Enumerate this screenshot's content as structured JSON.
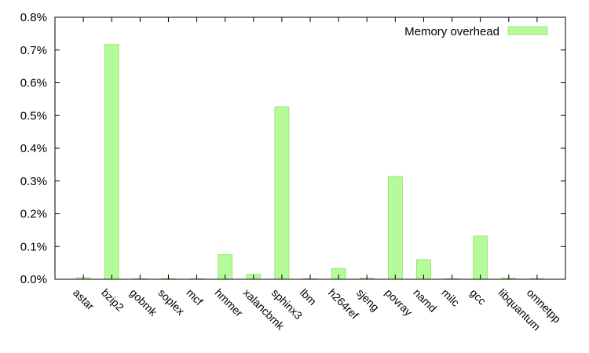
{
  "chart_data": {
    "type": "bar",
    "categories": [
      "astar",
      "bzip2",
      "gobmk",
      "soplex",
      "mcf",
      "hmmer",
      "xalancbmk",
      "sphinx3",
      "lbm",
      "h264ref",
      "sjeng",
      "povray",
      "namd",
      "milc",
      "gcc",
      "libquantum",
      "omnetpp"
    ],
    "series": [
      {
        "name": "Memory overhead",
        "values": [
          0.005,
          0.717,
          0.0,
          0.002,
          0.0,
          0.075,
          0.015,
          0.527,
          0.0,
          0.033,
          0.004,
          0.314,
          0.06,
          0.002,
          0.132,
          0.004,
          0.002
        ],
        "color": "#b5fb99",
        "stroke": "#8fe06e"
      }
    ],
    "ylim": [
      0,
      0.8
    ],
    "yticks": [
      0.0,
      0.1,
      0.2,
      0.3,
      0.4,
      0.5,
      0.6,
      0.7,
      0.8
    ],
    "ytick_labels": [
      "0.0%",
      "0.1%",
      "0.2%",
      "0.3%",
      "0.4%",
      "0.5%",
      "0.6%",
      "0.7%",
      "0.8%"
    ],
    "title": "",
    "xlabel": "",
    "ylabel": "",
    "legend_position": "top-right",
    "grid": false
  }
}
